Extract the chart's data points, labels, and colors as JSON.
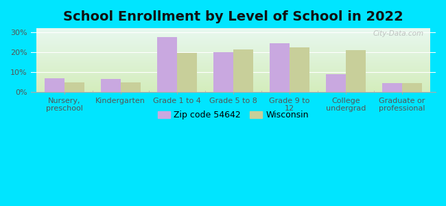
{
  "title": "School Enrollment by Level of School in 2022",
  "categories": [
    "Nursery,\npreschool",
    "Kindergarten",
    "Grade 1 to 4",
    "Grade 5 to 8",
    "Grade 9 to\n12",
    "College\nundergrad",
    "Graduate or\nprofessional"
  ],
  "zip_values": [
    7.0,
    6.5,
    27.5,
    20.0,
    24.5,
    9.0,
    4.5
  ],
  "wi_values": [
    5.0,
    4.8,
    19.5,
    21.5,
    22.5,
    21.0,
    4.5
  ],
  "zip_color": "#c9a8e0",
  "wi_color": "#c8cf9a",
  "background_outer": "#00e5ff",
  "background_inner_bottom": "#d4edbc",
  "background_inner_top": "#e8f8f0",
  "ylim": [
    0,
    32
  ],
  "yticks": [
    0,
    10,
    20,
    30
  ],
  "ytick_labels": [
    "0%",
    "10%",
    "20%",
    "30%"
  ],
  "zip_label": "Zip code 54642",
  "wi_label": "Wisconsin",
  "bar_width": 0.35,
  "title_fontsize": 14,
  "axis_fontsize": 8,
  "legend_fontsize": 9,
  "watermark": "City-Data.com"
}
